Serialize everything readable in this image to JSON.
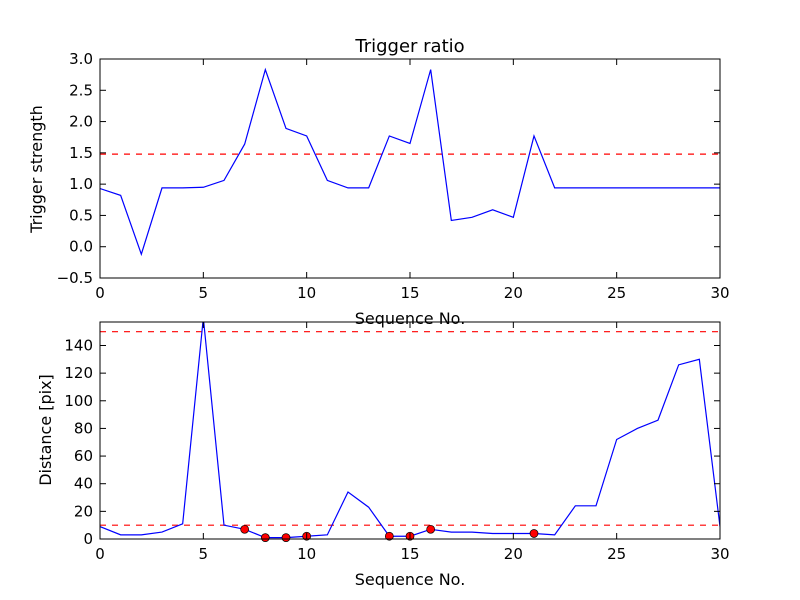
{
  "chart_data": [
    {
      "type": "line",
      "title": "Trigger ratio",
      "xlabel": "Sequence No.",
      "ylabel": "Trigger strength",
      "xlim": [
        0,
        30
      ],
      "ylim": [
        -0.5,
        3.0
      ],
      "xticks": [
        "0",
        "5",
        "10",
        "15",
        "20",
        "25",
        "30"
      ],
      "yticks": [
        "−0.5",
        "0.0",
        "0.5",
        "1.0",
        "1.5",
        "2.0",
        "2.5",
        "3.0"
      ],
      "grid": false,
      "series": [
        {
          "color": "#0000ff",
          "x": [
            0,
            1,
            2,
            3,
            4,
            5,
            6,
            7,
            8,
            9,
            10,
            11,
            12,
            13,
            14,
            15,
            16,
            17,
            18,
            19,
            20,
            21,
            22,
            23,
            24,
            25,
            26,
            27,
            28,
            29,
            30
          ],
          "y": [
            0.93,
            0.82,
            -0.12,
            0.94,
            0.94,
            0.95,
            1.06,
            1.64,
            2.83,
            1.89,
            1.77,
            1.06,
            0.94,
            0.94,
            1.77,
            1.65,
            2.83,
            0.42,
            0.47,
            0.59,
            0.47,
            1.77,
            0.94,
            0.94,
            0.94,
            0.94,
            0.94,
            0.94,
            0.94,
            0.94,
            0.94
          ]
        }
      ],
      "hlines": [
        {
          "y": 1.48,
          "color": "#ff0000",
          "style": "dashed"
        }
      ]
    },
    {
      "type": "line",
      "title": "",
      "xlabel": "Sequence No.",
      "ylabel": "Distance [pix]",
      "xlim": [
        0,
        30
      ],
      "ylim": [
        0,
        157
      ],
      "xticks": [
        "0",
        "5",
        "10",
        "15",
        "20",
        "25",
        "30"
      ],
      "yticks": [
        "0",
        "20",
        "40",
        "60",
        "80",
        "100",
        "120",
        "140"
      ],
      "grid": false,
      "series": [
        {
          "color": "#0000ff",
          "x": [
            0,
            1,
            2,
            3,
            4,
            5,
            6,
            7,
            8,
            9,
            10,
            11,
            12,
            13,
            14,
            15,
            16,
            17,
            18,
            19,
            20,
            21,
            22,
            23,
            24,
            25,
            26,
            27,
            28,
            29,
            30
          ],
          "y": [
            9,
            3,
            3,
            5,
            11,
            160,
            10,
            7,
            1,
            1,
            2,
            3,
            34,
            23,
            2,
            2,
            7,
            5,
            5,
            4,
            4,
            4,
            3,
            24,
            24,
            72,
            80,
            86,
            126,
            130,
            9
          ]
        }
      ],
      "markers": {
        "color": "#ff0000",
        "x": [
          7,
          8,
          9,
          10,
          14,
          15,
          16,
          21
        ],
        "y": [
          7,
          1,
          1,
          2,
          2,
          2,
          7,
          4
        ]
      },
      "hlines": [
        {
          "y": 150,
          "color": "#ff0000",
          "style": "dashed"
        },
        {
          "y": 10,
          "color": "#ff0000",
          "style": "dashed"
        }
      ]
    }
  ]
}
